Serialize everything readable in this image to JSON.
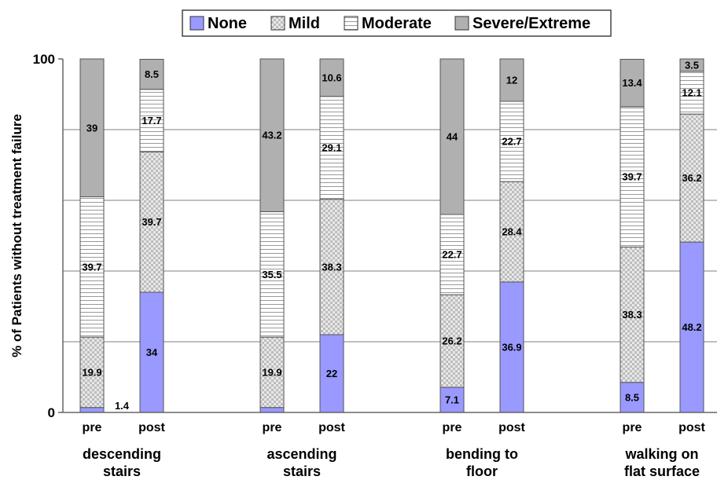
{
  "chart_data": {
    "type": "bar",
    "stacked": true,
    "ylabel": "% of Patients without treatment failure",
    "ylim": [
      0,
      100
    ],
    "yticks": [
      "0",
      "100"
    ],
    "grid": true,
    "legend_placement": "top-center",
    "series": [
      {
        "name": "None",
        "color": "#9999ff"
      },
      {
        "name": "Mild",
        "color": "#d4d4d4"
      },
      {
        "name": "Moderate",
        "color": "#ffffff"
      },
      {
        "name": "Severe/Extreme",
        "color": "#b0b0b0"
      }
    ],
    "groups": [
      {
        "label_line1": "descending",
        "label_line2": "stairs",
        "bars": [
          {
            "label": "pre",
            "values": [
              1.4,
              19.9,
              39.7,
              39
            ]
          },
          {
            "label": "post",
            "values": [
              34,
              39.7,
              17.7,
              8.5
            ]
          }
        ]
      },
      {
        "label_line1": "ascending",
        "label_line2": "stairs",
        "bars": [
          {
            "label": "pre",
            "values": [
              1.4,
              19.9,
              35.5,
              43.2
            ]
          },
          {
            "label": "post",
            "values": [
              22,
              38.3,
              29.1,
              10.6
            ]
          }
        ]
      },
      {
        "label_line1": "bending to",
        "label_line2": "floor",
        "bars": [
          {
            "label": "pre",
            "values": [
              7.1,
              26.2,
              22.7,
              44
            ]
          },
          {
            "label": "post",
            "values": [
              36.9,
              28.4,
              22.7,
              12
            ]
          }
        ]
      },
      {
        "label_line1": "walking on",
        "label_line2": "flat surface",
        "bars": [
          {
            "label": "pre",
            "values": [
              8.5,
              38.3,
              39.7,
              13.4
            ]
          },
          {
            "label": "post",
            "values": [
              48.2,
              36.2,
              12.1,
              3.5
            ]
          }
        ]
      }
    ],
    "segment_labels": [
      [
        [
          null,
          "19.9",
          "39.7",
          "39"
        ],
        [
          "34",
          "39.7",
          "17.7",
          "8.5"
        ]
      ],
      [
        [
          null,
          "19.9",
          "35.5",
          "43.2"
        ],
        [
          "22",
          "38.3",
          "29.1",
          "10.6"
        ]
      ],
      [
        [
          "7.1",
          "26.2",
          "22.7",
          "44"
        ],
        [
          "36.9",
          "28.4",
          "22.7",
          "12"
        ]
      ],
      [
        [
          "8.5",
          "38.3",
          "39.7",
          "13.4"
        ],
        [
          "48.2",
          "36.2",
          "12.1",
          "3.5"
        ]
      ]
    ],
    "outside_labels": [
      {
        "group": 0,
        "bar": 0,
        "text": "1.4"
      }
    ]
  }
}
